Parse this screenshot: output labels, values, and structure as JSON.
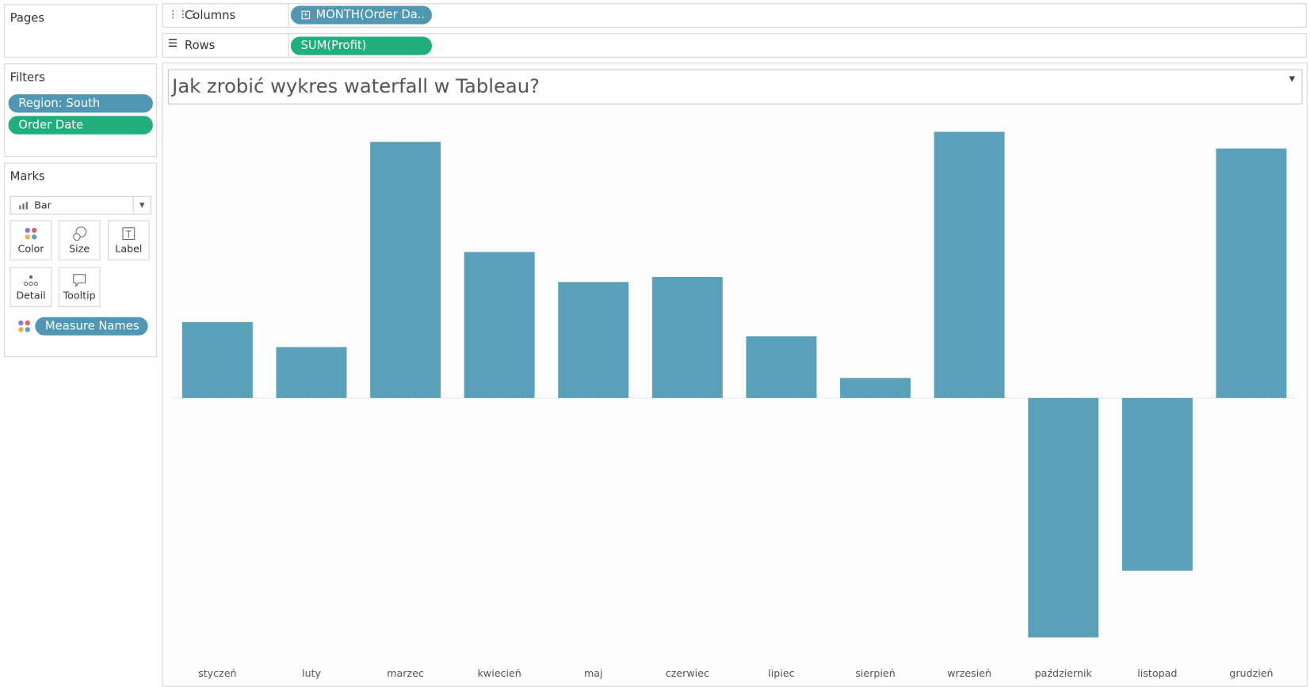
{
  "pages": {
    "title": "Pages"
  },
  "shelves": {
    "columns": {
      "label": "Columns",
      "pill": "MONTH(Order Da.."
    },
    "rows": {
      "label": "Rows",
      "pill": "SUM(Profit)"
    }
  },
  "filters": {
    "title": "Filters",
    "pills": [
      "Region: South",
      "Order Date"
    ]
  },
  "marks": {
    "title": "Marks",
    "mark_type": "Bar",
    "buttons": [
      "Color",
      "Size",
      "Label",
      "Detail",
      "Tooltip"
    ],
    "pills": [
      "Measure Names"
    ]
  },
  "chart_data": {
    "type": "bar",
    "title": "Jak zrobić wykres waterfall w Tableau?",
    "categories": [
      "styczeń",
      "luty",
      "marzec",
      "kwiecień",
      "maj",
      "czerwiec",
      "lipiec",
      "sierpień",
      "wrzesień",
      "październik",
      "listopad",
      "grudzień"
    ],
    "values": [
      91,
      61,
      307,
      175,
      139,
      145,
      74,
      24,
      319,
      -287,
      -207,
      299
    ],
    "color": "#5aa0b8",
    "ylim": [
      -313,
      347
    ]
  }
}
